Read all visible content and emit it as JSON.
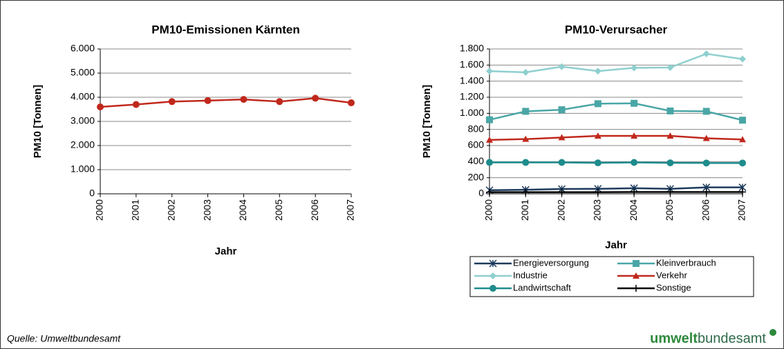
{
  "chart_data": [
    {
      "type": "line",
      "title": "PM10-Emissionen Kärnten",
      "x_label": "Jahr",
      "y_label": "PM10 [Tonnen]",
      "categories": [
        "2000",
        "2001",
        "2002",
        "2003",
        "2004",
        "2005",
        "2006",
        "2007"
      ],
      "values": [
        3600,
        3700,
        3820,
        3860,
        3910,
        3820,
        3960,
        3770
      ],
      "color": "#c0281c",
      "marker": "circle",
      "ylim": [
        0,
        6000
      ],
      "yticks": [
        0,
        {
          "value": 1000,
          "label": "1.000"
        },
        {
          "value": 2000,
          "label": "2.000"
        },
        {
          "value": 3000,
          "label": "3.000"
        },
        {
          "value": 4000,
          "label": "4.000"
        },
        {
          "value": 5000,
          "label": "5.000"
        },
        {
          "value": 6000,
          "label": "6.000"
        }
      ],
      "grid": true
    },
    {
      "type": "line",
      "title": "PM10-Verursacher",
      "x_label": "Jahr",
      "y_label": "PM10 [Tonnen]",
      "categories": [
        "2000",
        "2001",
        "2002",
        "2003",
        "2004",
        "2005",
        "2006",
        "2007"
      ],
      "series": [
        {
          "name": "Energieversorgung",
          "color": "#1c3a5c",
          "marker": "star",
          "values": [
            45,
            50,
            60,
            62,
            70,
            62,
            80,
            80
          ]
        },
        {
          "name": "Kleinverbrauch",
          "color": "#4aa6a6",
          "marker": "square",
          "values": [
            920,
            1025,
            1045,
            1120,
            1125,
            1030,
            1025,
            915
          ]
        },
        {
          "name": "Industrie",
          "color": "#8fcfcf",
          "marker": "diamond",
          "values": [
            1525,
            1510,
            1580,
            1525,
            1565,
            1570,
            1740,
            1675
          ]
        },
        {
          "name": "Verkehr",
          "color": "#c0281c",
          "marker": "triangle",
          "values": [
            670,
            680,
            700,
            720,
            720,
            720,
            690,
            675
          ]
        },
        {
          "name": "Landwirtschaft",
          "color": "#1e8c8c",
          "marker": "circle",
          "values": [
            390,
            390,
            390,
            385,
            390,
            385,
            383,
            383
          ]
        },
        {
          "name": "Sonstige",
          "color": "#000000",
          "marker": "plus",
          "values": [
            20,
            20,
            20,
            20,
            22,
            22,
            22,
            22
          ]
        }
      ],
      "ylim": [
        0,
        1800
      ],
      "yticks": [
        0,
        200,
        400,
        600,
        800,
        {
          "value": 1000,
          "label": "1.000"
        },
        {
          "value": 1200,
          "label": "1.200"
        },
        {
          "value": 1400,
          "label": "1.400"
        },
        {
          "value": 1600,
          "label": "1.600"
        },
        {
          "value": 1800,
          "label": "1.800"
        }
      ],
      "grid": true,
      "legend": "bottom"
    }
  ],
  "source": "Quelle: Umweltbundesamt",
  "logo": {
    "bold": "umwelt",
    "rest": "bundesamt"
  }
}
